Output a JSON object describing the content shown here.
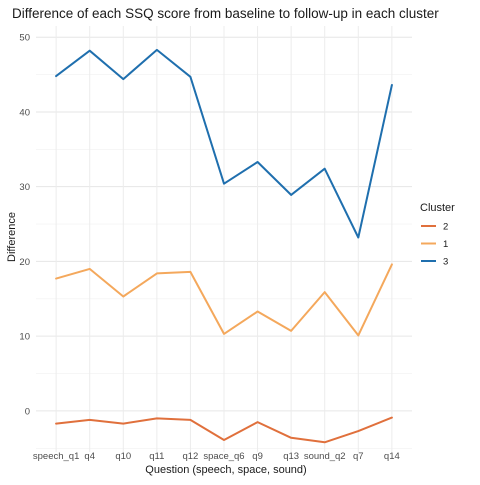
{
  "chart_data": {
    "type": "line",
    "title": "Difference of each SSQ score from baseline to follow-up in each cluster",
    "xlabel": "Question (speech, space, sound)",
    "ylabel": "Difference",
    "categories": [
      "speech_q1",
      "q4",
      "q10",
      "q11",
      "q12",
      "space_q6",
      "q9",
      "q13",
      "sound_q2",
      "q7",
      "q14"
    ],
    "y_ticks": [
      0,
      10,
      20,
      30,
      40,
      50
    ],
    "ylim": [
      -5.5,
      51.5
    ],
    "grid": true,
    "legend": {
      "title": "Cluster",
      "position": "right"
    },
    "series": [
      {
        "name": "2",
        "color": "#e0703c",
        "values": [
          -1.7,
          -1.2,
          -1.7,
          -1.0,
          -1.2,
          -3.9,
          -1.5,
          -3.6,
          -4.2,
          -2.7,
          -0.9
        ]
      },
      {
        "name": "1",
        "color": "#f4a85c",
        "values": [
          17.7,
          19.0,
          15.3,
          18.4,
          18.6,
          10.3,
          13.3,
          10.7,
          15.9,
          10.1,
          19.6
        ]
      },
      {
        "name": "3",
        "color": "#1f6fae",
        "values": [
          44.8,
          48.2,
          44.4,
          48.3,
          44.7,
          30.4,
          33.3,
          28.9,
          32.4,
          23.2,
          43.6
        ]
      }
    ]
  }
}
